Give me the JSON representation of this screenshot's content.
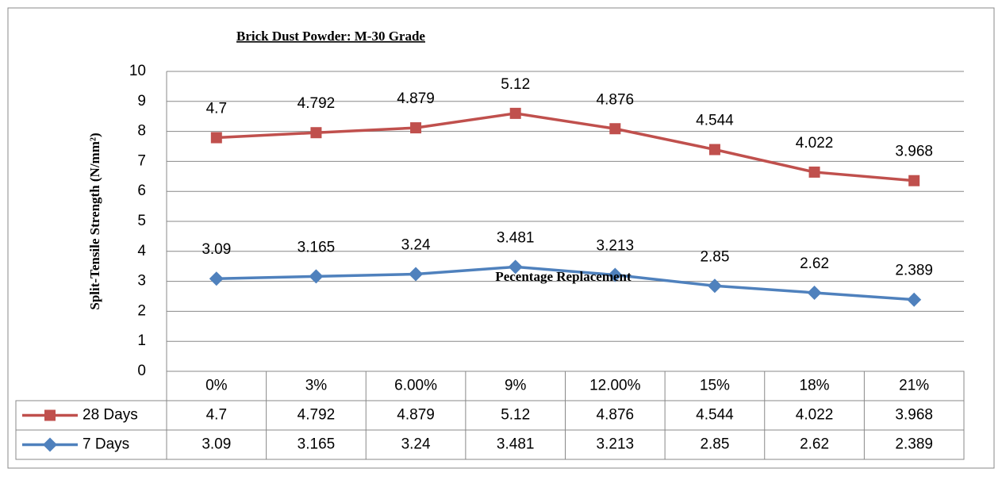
{
  "chart_data": {
    "type": "line",
    "stacked": true,
    "title": "Brick Dust Powder: M-30 Grade",
    "y_label": "Split-Tensile Strength (N/mm²)",
    "x_label": "Pecentage Replacement",
    "categories": [
      "0%",
      "3%",
      "6.00%",
      "9%",
      "12.00%",
      "15%",
      "18%",
      "21%"
    ],
    "series": [
      {
        "name": "7 Days",
        "color": "#4f81bd",
        "marker": "diamond",
        "values": [
          3.09,
          3.165,
          3.24,
          3.481,
          3.213,
          2.85,
          2.62,
          2.389
        ]
      },
      {
        "name": "28 Days",
        "color": "#c0504d",
        "marker": "square",
        "values": [
          4.7,
          4.792,
          4.879,
          5.12,
          4.876,
          4.544,
          4.022,
          3.968
        ]
      }
    ],
    "ylim": [
      0,
      10
    ],
    "yticks": [
      0,
      1,
      2,
      3,
      4,
      5,
      6,
      7,
      8,
      9,
      10
    ],
    "grid": true,
    "data_table": true
  }
}
